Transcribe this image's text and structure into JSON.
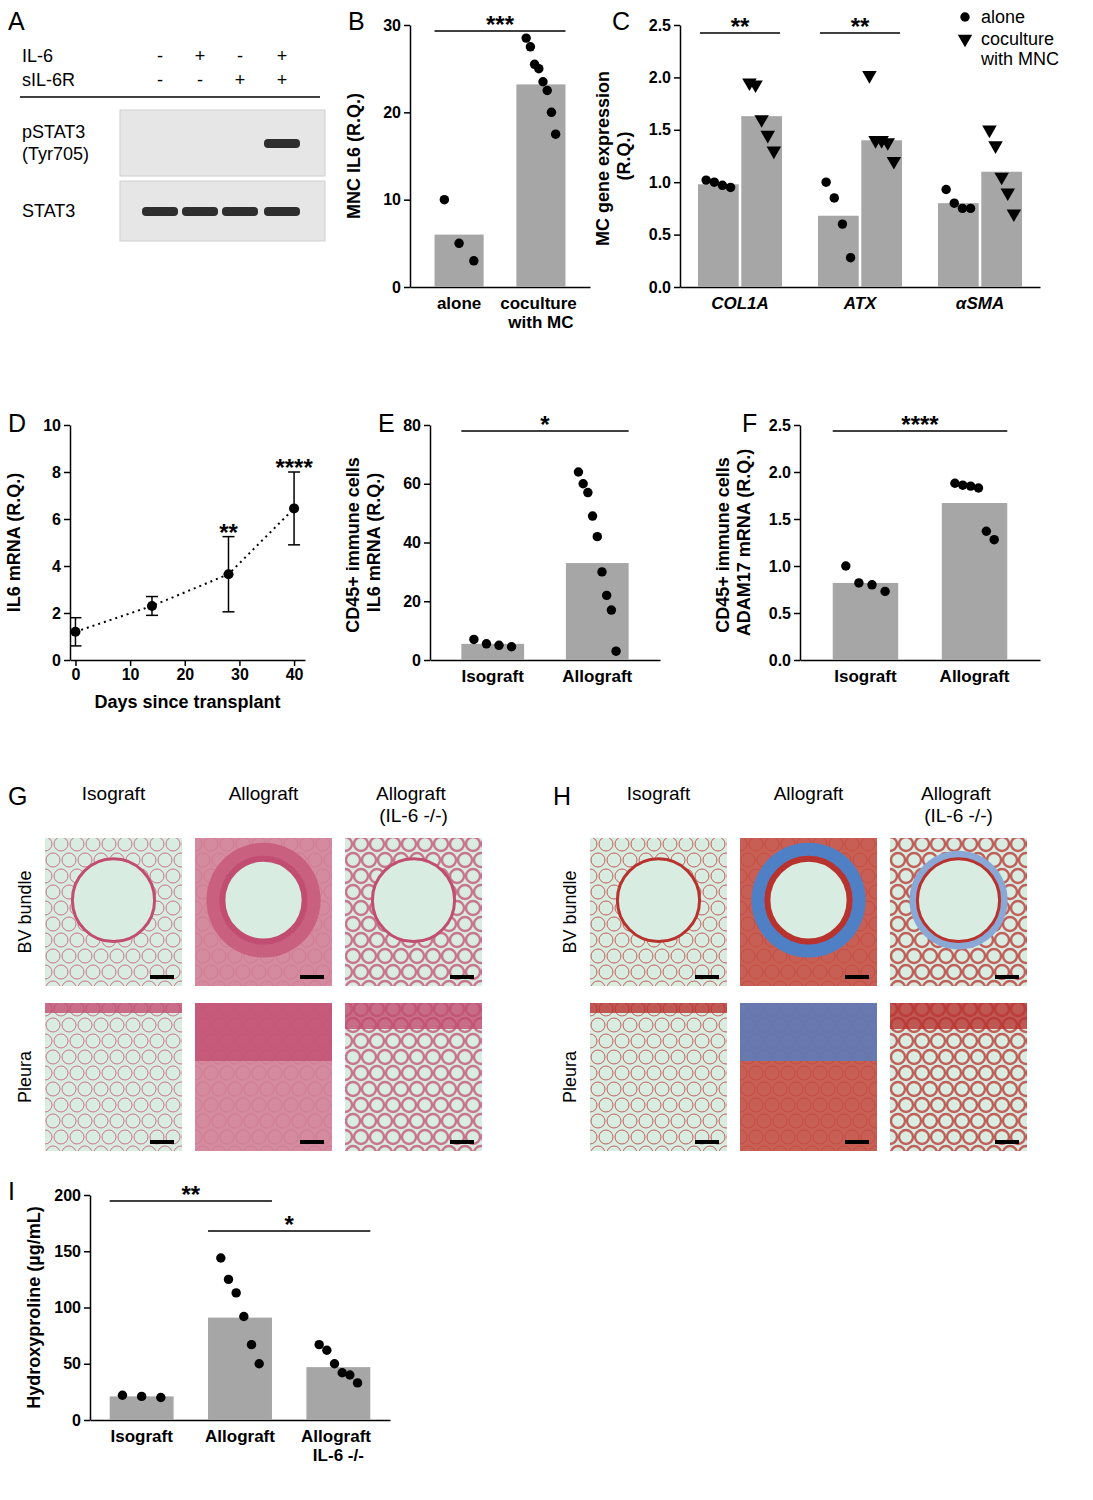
{
  "chart_data": [
    {
      "panel": "B",
      "type": "bar",
      "ylabel": "MNC IL6 (R.Q.)",
      "categories": [
        "alone",
        "coculture with MC"
      ],
      "values": [
        6,
        23.2
      ],
      "points": [
        [
          10,
          5,
          3
        ],
        [
          28.5,
          27.5,
          25.5,
          25,
          23.5,
          22.5,
          20,
          17.5
        ]
      ],
      "color": "#a6a6a6",
      "ylim": [
        0,
        30
      ],
      "yticks": [
        0,
        10,
        20,
        30
      ],
      "annotations": [
        {
          "text": "***",
          "from": 0,
          "to": 1
        }
      ]
    },
    {
      "panel": "C",
      "type": "bar",
      "ylabel": "MC gene expression (R.Q.)",
      "categories": [
        "COL1A",
        "ATX",
        "αSMA"
      ],
      "series": [
        {
          "name": "alone",
          "color": "#a6a6a6",
          "marker": "circle",
          "values": [
            0.98,
            0.68,
            0.8
          ],
          "points": [
            [
              1.02,
              1,
              0.97,
              0.95
            ],
            [
              1,
              0.85,
              0.6,
              0.28
            ],
            [
              0.93,
              0.8,
              0.75,
              0.75
            ]
          ]
        },
        {
          "name": "coculture with MNC",
          "color": "#a6a6a6",
          "marker": "triangle-down",
          "values": [
            1.63,
            1.4,
            1.1
          ],
          "points": [
            [
              1.95,
              1.93,
              1.6,
              1.45,
              1.3
            ],
            [
              2.02,
              1.4,
              1.4,
              1.38,
              1.2
            ],
            [
              1.5,
              1.35,
              1.05,
              0.9,
              0.7
            ]
          ]
        }
      ],
      "ylim": [
        0,
        2.5
      ],
      "yticks": [
        {
          "value": 0,
          "label": "0.0"
        },
        0.5,
        {
          "value": 1,
          "label": "1.0"
        },
        1.5,
        {
          "value": 2,
          "label": "2.0"
        },
        2.5
      ],
      "legend": "top-right",
      "annotations": [
        {
          "text": "**",
          "category": 0
        },
        {
          "text": "**",
          "category": 1
        }
      ]
    },
    {
      "panel": "D",
      "type": "line",
      "ylabel": "IL6 mRNA (R.Q.)",
      "xlabel": "Days since transplant",
      "x": [
        0,
        14,
        28,
        40
      ],
      "values": [
        1.2,
        2.3,
        3.65,
        6.45
      ],
      "errors": [
        0.6,
        0.4,
        1.6,
        1.55
      ],
      "color": "#000000",
      "marker": "circle",
      "line_style": "dotted",
      "xlim": [
        -1,
        42
      ],
      "xticks": [
        0,
        10,
        20,
        30,
        40
      ],
      "ylim": [
        0,
        10
      ],
      "yticks": [
        0,
        2,
        4,
        6,
        8,
        10
      ],
      "annotations": [
        {
          "text": "**",
          "x": 28
        },
        {
          "text": "****",
          "x": 40
        }
      ]
    },
    {
      "panel": "E",
      "type": "bar",
      "ylabel": "CD45+ immune cells IL6 mRNA (R.Q.)",
      "categories": [
        "Isograft",
        "Allograft"
      ],
      "values": [
        5.5,
        33
      ],
      "points": [
        [
          7,
          5.5,
          5,
          4.5
        ],
        [
          64,
          60,
          57,
          49,
          42,
          30,
          22,
          17,
          3
        ]
      ],
      "color": "#a6a6a6",
      "ylim": [
        0,
        80
      ],
      "yticks": [
        0,
        20,
        40,
        60,
        80
      ],
      "annotations": [
        {
          "text": "*",
          "from": 0,
          "to": 1
        }
      ]
    },
    {
      "panel": "F",
      "type": "bar",
      "ylabel": "CD45+ immune cells ADAM17 mRNA (R.Q.)",
      "categories": [
        "Isograft",
        "Allograft"
      ],
      "values": [
        0.82,
        1.67
      ],
      "points": [
        [
          1,
          0.82,
          0.8,
          0.73
        ],
        [
          1.88,
          1.86,
          1.85,
          1.83,
          1.37,
          1.28
        ]
      ],
      "color": "#a6a6a6",
      "ylim": [
        0,
        2.5
      ],
      "yticks": [
        {
          "value": 0,
          "label": "0.0"
        },
        0.5,
        {
          "value": 1,
          "label": "1.0"
        },
        1.5,
        {
          "value": 2,
          "label": "2.0"
        },
        2.5
      ],
      "annotations": [
        {
          "text": "****",
          "from": 0,
          "to": 1
        }
      ]
    },
    {
      "panel": "I",
      "type": "bar",
      "ylabel": "Hydroxyproline (µg/mL)",
      "categories": [
        "Isograft",
        "Allograft",
        "Allograft IL-6 -/-"
      ],
      "values": [
        21,
        91,
        47
      ],
      "points": [
        [
          22,
          21,
          20
        ],
        [
          144,
          125,
          113,
          92,
          67,
          50
        ],
        [
          67,
          62,
          50,
          42,
          40,
          33
        ]
      ],
      "color": "#a6a6a6",
      "ylim": [
        0,
        200
      ],
      "yticks": [
        0,
        50,
        100,
        150,
        200
      ],
      "annotations": [
        {
          "text": "**",
          "from": 0,
          "to": 1
        },
        {
          "text": "*",
          "from": 1,
          "to": 2
        }
      ]
    }
  ],
  "blot": {
    "panel": "A",
    "treatments": [
      {
        "label": "IL-6",
        "signs": [
          "-",
          "+",
          "-",
          "+"
        ]
      },
      {
        "label": "sIL-6R",
        "signs": [
          "-",
          "-",
          "+",
          "+"
        ]
      }
    ],
    "rows": [
      {
        "label": "pSTAT3 (Tyr705)",
        "bands": [
          0,
          0,
          0,
          1
        ]
      },
      {
        "label": "STAT3",
        "bands": [
          1,
          1,
          1,
          1
        ]
      }
    ]
  },
  "histology": [
    {
      "panel": "G",
      "columns": [
        "Isograft",
        "Allograft",
        "Allograft (IL-6 -/-)"
      ],
      "rows": [
        "BV bundle",
        "Pleura"
      ]
    },
    {
      "panel": "H",
      "columns": [
        "Isograft",
        "Allograft",
        "Allograft (IL-6 -/-)"
      ],
      "rows": [
        "BV bundle",
        "Pleura"
      ]
    }
  ]
}
